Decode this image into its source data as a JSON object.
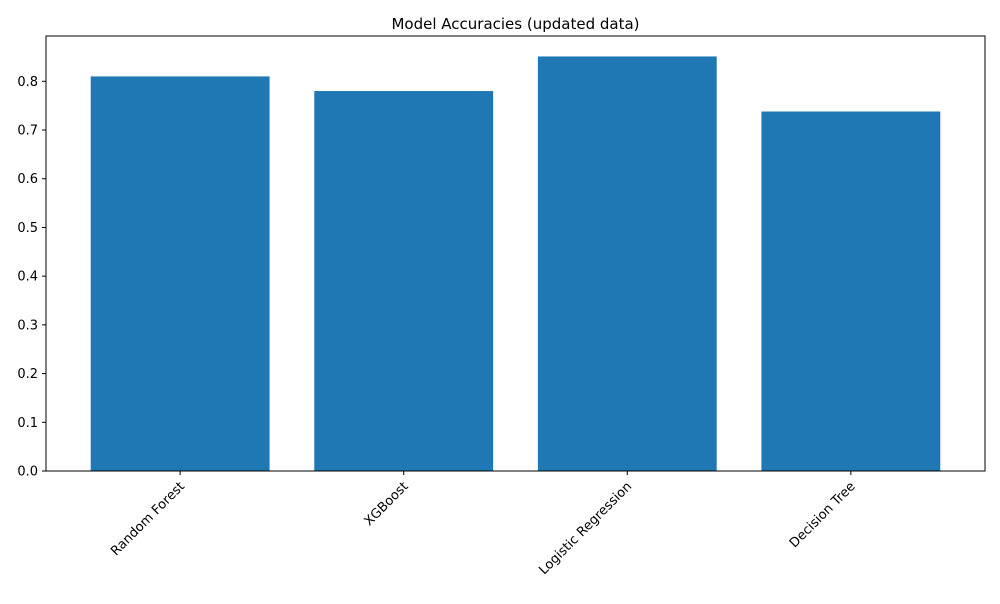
{
  "chart_data": {
    "type": "bar",
    "title": "Model Accuracies (updated data)",
    "xlabel": "",
    "ylabel": "",
    "categories": [
      "Random Forest",
      "XGBoost",
      "Logistic Regression",
      "Decision Tree"
    ],
    "values": [
      0.81,
      0.78,
      0.851,
      0.738
    ],
    "ylim": [
      0,
      0.893
    ],
    "yticks": [
      "0.0",
      "0.1",
      "0.2",
      "0.3",
      "0.4",
      "0.5",
      "0.6",
      "0.7",
      "0.8"
    ],
    "bar_color": "#1f77b4",
    "grid": false,
    "legend": "none",
    "xtick_rotation_deg": 45
  }
}
